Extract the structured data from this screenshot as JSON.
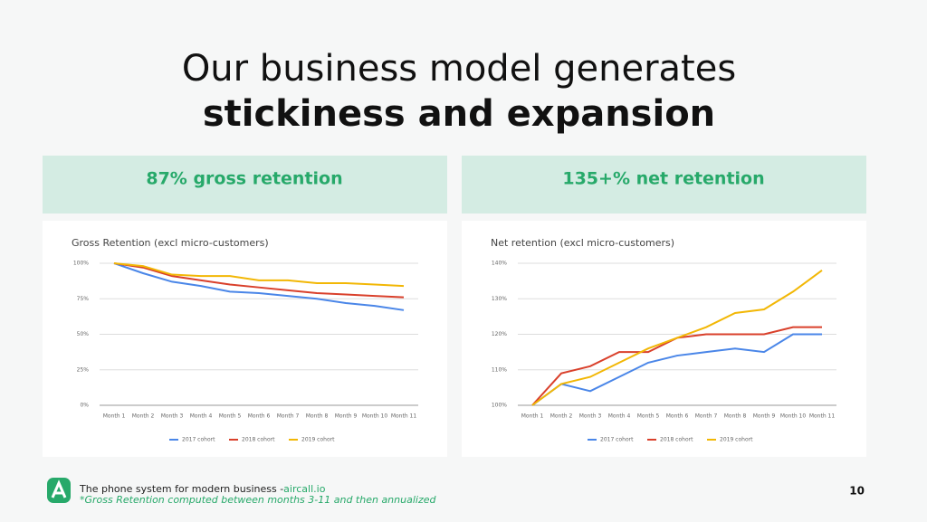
{
  "title_line1": "Our business model generates",
  "title_line2": "stickiness and expansion",
  "panels": [
    {
      "header": "87% gross retention"
    },
    {
      "header": "135+% net retention"
    }
  ],
  "chart_data": [
    {
      "type": "line",
      "title": "Gross Retention (excl micro-customers)",
      "categories": [
        "Month 1",
        "Month 2",
        "Month 3",
        "Month 4",
        "Month 5",
        "Month 6",
        "Month 7",
        "Month 8",
        "Month 9",
        "Month 10",
        "Month 11"
      ],
      "series": [
        {
          "name": "2017 cohort",
          "color": "#4a86e8",
          "values": [
            100,
            93,
            87,
            84,
            80,
            79,
            77,
            75,
            72,
            70,
            67
          ]
        },
        {
          "name": "2018 cohort",
          "color": "#d9402b",
          "values": [
            100,
            97,
            91,
            88,
            85,
            83,
            81,
            79,
            78,
            77,
            76
          ]
        },
        {
          "name": "2019 cohort",
          "color": "#f2b705",
          "values": [
            100,
            98,
            92,
            91,
            91,
            88,
            88,
            86,
            86,
            85,
            84
          ]
        }
      ],
      "ylim": [
        0,
        100
      ],
      "yticks": [
        {
          "value": 0,
          "label": "0%"
        },
        {
          "value": 25,
          "label": "25%"
        },
        {
          "value": 50,
          "label": "50%"
        },
        {
          "value": 75,
          "label": "75%"
        },
        {
          "value": 100,
          "label": "100%"
        }
      ],
      "grid": true,
      "legend": "bottom"
    },
    {
      "type": "line",
      "title": "Net retention (excl micro-customers)",
      "categories": [
        "Month 1",
        "Month 2",
        "Month 3",
        "Month 4",
        "Month 5",
        "Month 6",
        "Month 7",
        "Month 8",
        "Month 9",
        "Month 10",
        "Month 11"
      ],
      "series": [
        {
          "name": "2017 cohort",
          "color": "#4a86e8",
          "values": [
            100,
            106,
            104,
            108,
            112,
            114,
            115,
            116,
            115,
            120,
            120
          ]
        },
        {
          "name": "2018 cohort",
          "color": "#d9402b",
          "values": [
            100,
            109,
            111,
            115,
            115,
            119,
            120,
            120,
            120,
            122,
            122
          ]
        },
        {
          "name": "2019 cohort",
          "color": "#f2b705",
          "values": [
            100,
            106,
            108,
            112,
            116,
            119,
            122,
            126,
            127,
            132,
            138
          ]
        }
      ],
      "ylim": [
        100,
        140
      ],
      "yticks": [
        {
          "value": 100,
          "label": "100%"
        },
        {
          "value": 110,
          "label": "110%"
        },
        {
          "value": 120,
          "label": "120%"
        },
        {
          "value": 130,
          "label": "130%"
        },
        {
          "value": 140,
          "label": "140%"
        }
      ],
      "grid": true,
      "legend": "bottom"
    }
  ],
  "footer": {
    "tagline": "The phone system for modern business - ",
    "link": "aircall.io",
    "note": "*Gross Retention computed between months 3-11 and then annualized",
    "page": "10"
  }
}
